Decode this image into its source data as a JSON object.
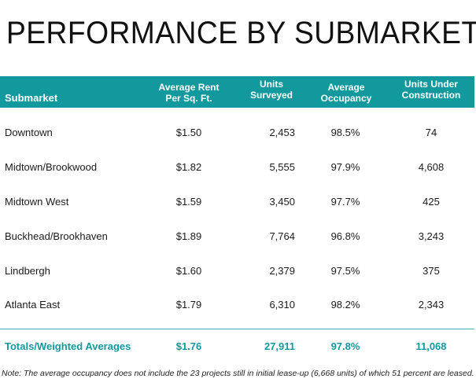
{
  "title": "PERFORMANCE BY SUBMARKET",
  "colors": {
    "header_bg": "#11999e",
    "accent_text": "#11999e",
    "divider": "#3fb3b3"
  },
  "table": {
    "headers": {
      "submarket": "Submarket",
      "rent": [
        "Average Rent",
        "Per Sq. Ft."
      ],
      "units": [
        "Units",
        "Surveyed"
      ],
      "occupancy": [
        "Average",
        "Occupancy"
      ],
      "construction": [
        "Units Under",
        "Construction"
      ]
    },
    "rows": [
      {
        "name": "Downtown",
        "rent": "$1.50",
        "units": "2,453",
        "occupancy": "98.5%",
        "construction": "74"
      },
      {
        "name": "Midtown/Brookwood",
        "rent": "$1.82",
        "units": "5,555",
        "occupancy": "97.9%",
        "construction": "4,608"
      },
      {
        "name": "Midtown West",
        "rent": "$1.59",
        "units": "3,450",
        "occupancy": "97.7%",
        "construction": "425"
      },
      {
        "name": "Buckhead/Brookhaven",
        "rent": "$1.89",
        "units": "7,764",
        "occupancy": "96.8%",
        "construction": "3,243"
      },
      {
        "name": "Lindbergh",
        "rent": "$1.60",
        "units": "2,379",
        "occupancy": "97.5%",
        "construction": "375"
      },
      {
        "name": "Atlanta East",
        "rent": "$1.79",
        "units": "6,310",
        "occupancy": "98.2%",
        "construction": "2,343"
      }
    ],
    "totals": {
      "name": "Totals/Weighted Averages",
      "rent": "$1.76",
      "units": "27,911",
      "occupancy": "97.8%",
      "construction": "11,068"
    }
  },
  "note": "Note: The average occupancy does not include the 23 projects still in initial lease-up (6,668 units) of which 51 percent are leased."
}
